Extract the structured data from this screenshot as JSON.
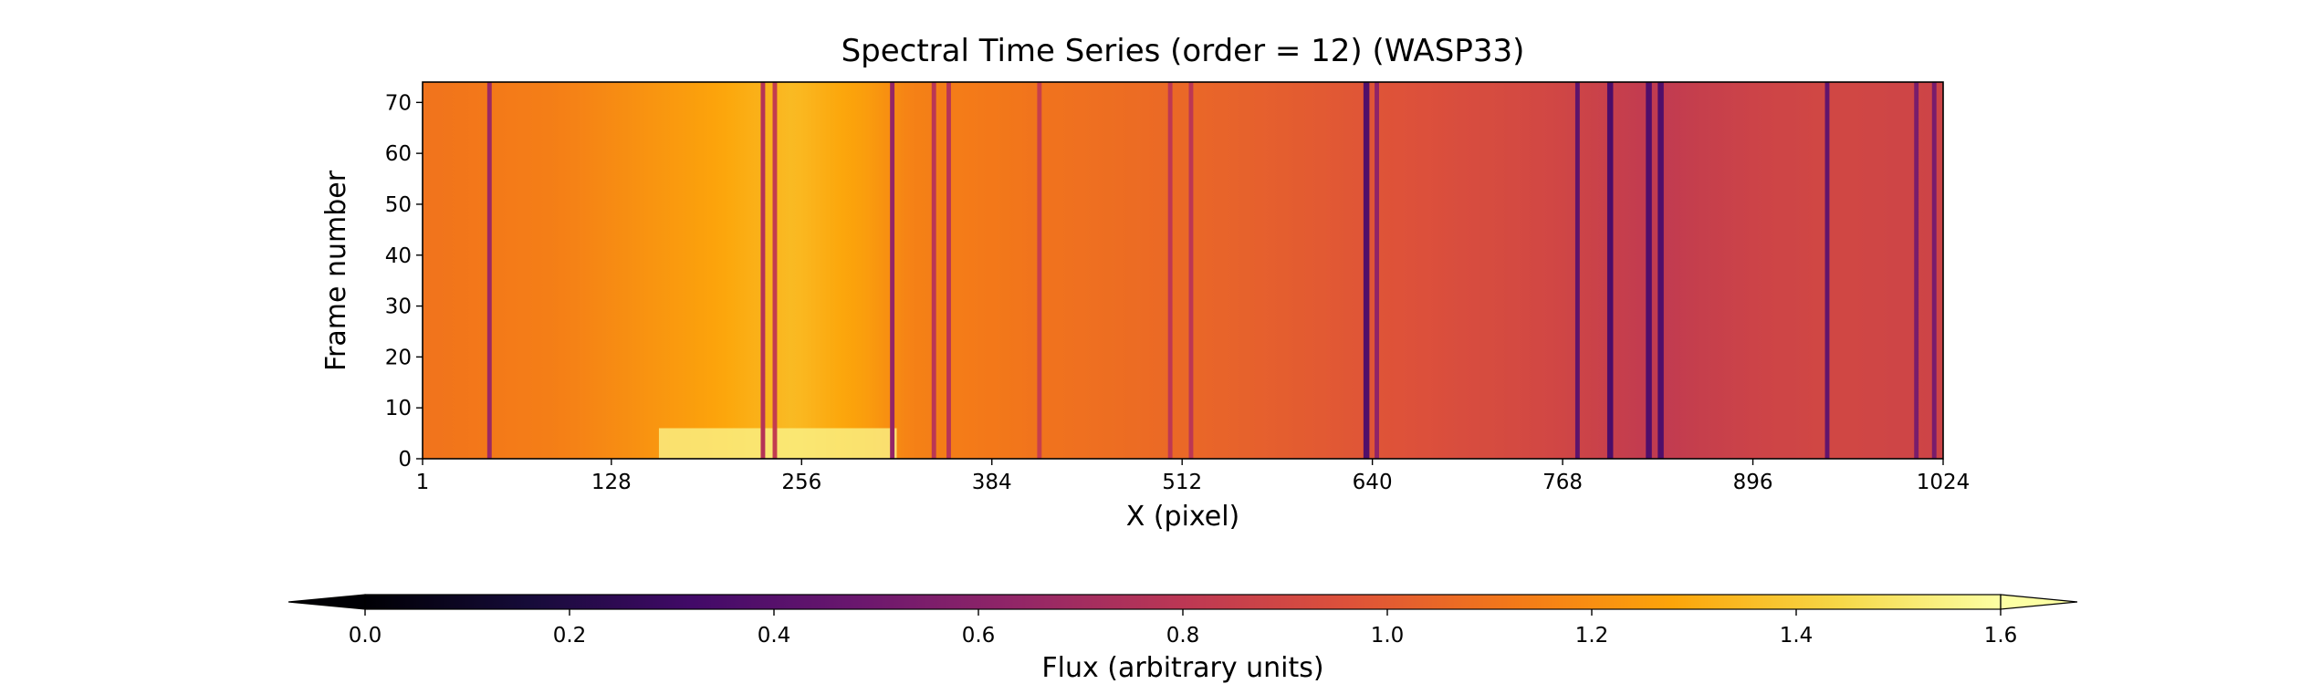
{
  "chart_data": [
    {
      "type": "heatmap",
      "title": "Spectral Time Series (order = 12) (WASP33)",
      "xlabel": "X (pixel)",
      "ylabel": "Frame number",
      "xlim": [
        1,
        1024
      ],
      "ylim": [
        0,
        74
      ],
      "xticks": [
        "1",
        "128",
        "256",
        "384",
        "512",
        "640",
        "768",
        "896",
        "1024"
      ],
      "xtick_values": [
        1,
        128,
        256,
        384,
        512,
        640,
        768,
        896,
        1024
      ],
      "yticks": [
        "0",
        "10",
        "20",
        "30",
        "40",
        "50",
        "60",
        "70"
      ],
      "ytick_values": [
        0,
        10,
        20,
        30,
        40,
        50,
        60,
        70
      ],
      "colormap": "inferno",
      "baseline_flux_by_x": [
        {
          "x": 1,
          "flux": 1.1
        },
        {
          "x": 100,
          "flux": 1.15
        },
        {
          "x": 180,
          "flux": 1.25
        },
        {
          "x": 250,
          "flux": 1.35
        },
        {
          "x": 300,
          "flux": 1.25
        },
        {
          "x": 330,
          "flux": 1.15
        },
        {
          "x": 420,
          "flux": 1.1
        },
        {
          "x": 520,
          "flux": 1.05
        },
        {
          "x": 600,
          "flux": 1.0
        },
        {
          "x": 680,
          "flux": 0.95
        },
        {
          "x": 760,
          "flux": 0.9
        },
        {
          "x": 830,
          "flux": 0.82
        },
        {
          "x": 900,
          "flux": 0.88
        },
        {
          "x": 950,
          "flux": 0.9
        },
        {
          "x": 1024,
          "flux": 0.88
        }
      ],
      "absorption_lines": [
        {
          "x": 46,
          "depth": 0.45,
          "width": 3
        },
        {
          "x": 230,
          "depth": 0.55,
          "width": 3
        },
        {
          "x": 238,
          "depth": 0.5,
          "width": 3
        },
        {
          "x": 317,
          "depth": 0.55,
          "width": 3
        },
        {
          "x": 345,
          "depth": 0.35,
          "width": 3
        },
        {
          "x": 355,
          "depth": 0.35,
          "width": 3
        },
        {
          "x": 416,
          "depth": 0.25,
          "width": 3
        },
        {
          "x": 504,
          "depth": 0.25,
          "width": 3
        },
        {
          "x": 518,
          "depth": 0.25,
          "width": 3
        },
        {
          "x": 636,
          "depth": 0.6,
          "width": 4
        },
        {
          "x": 643,
          "depth": 0.35,
          "width": 3
        },
        {
          "x": 778,
          "depth": 0.45,
          "width": 3
        },
        {
          "x": 800,
          "depth": 0.5,
          "width": 4
        },
        {
          "x": 826,
          "depth": 0.45,
          "width": 4
        },
        {
          "x": 834,
          "depth": 0.45,
          "width": 4
        },
        {
          "x": 946,
          "depth": 0.45,
          "width": 3
        },
        {
          "x": 1006,
          "depth": 0.35,
          "width": 3
        },
        {
          "x": 1018,
          "depth": 0.35,
          "width": 3
        }
      ],
      "bright_region": {
        "x_range": [
          160,
          320
        ],
        "y_range": [
          0,
          6
        ],
        "flux": 1.55
      }
    },
    {
      "type": "colorbar",
      "label": "Flux (arbitrary units)",
      "range": [
        0.0,
        1.6
      ],
      "extend": "both",
      "ticks": [
        "0.0",
        "0.2",
        "0.4",
        "0.6",
        "0.8",
        "1.0",
        "1.2",
        "1.4",
        "1.6"
      ],
      "tick_values": [
        0.0,
        0.2,
        0.4,
        0.6,
        0.8,
        1.0,
        1.2,
        1.4,
        1.6
      ],
      "colormap": "inferno"
    }
  ]
}
